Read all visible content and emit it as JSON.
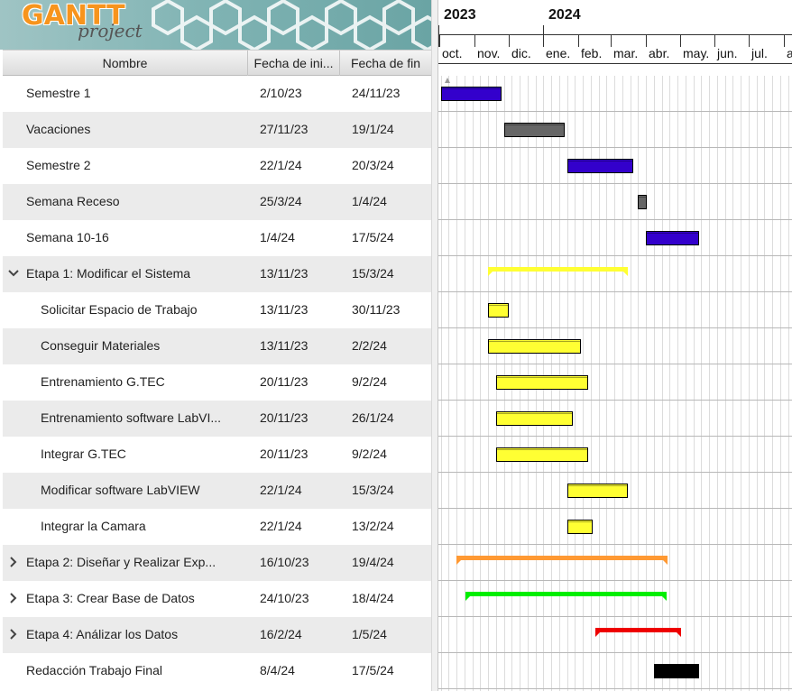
{
  "logo": {
    "main": "GANTT",
    "sub": "project"
  },
  "columns": {
    "name": "Nombre",
    "start": "Fecha de ini...",
    "end": "Fecha de fin"
  },
  "tasks": [
    {
      "name": "Semestre 1",
      "start": "2/10/23",
      "end": "24/11/23",
      "level": 0,
      "expander": "none",
      "color": "#3300cc",
      "type": "task"
    },
    {
      "name": "Vacaciones",
      "start": "27/11/23",
      "end": "19/1/24",
      "level": 0,
      "expander": "none",
      "color": "#666666",
      "type": "task"
    },
    {
      "name": "Semestre 2",
      "start": "22/1/24",
      "end": "20/3/24",
      "level": 0,
      "expander": "none",
      "color": "#3300cc",
      "type": "task"
    },
    {
      "name": "Semana Receso",
      "start": "25/3/24",
      "end": "1/4/24",
      "level": 0,
      "expander": "none",
      "color": "#666666",
      "type": "task"
    },
    {
      "name": "Semana 10-16",
      "start": "1/4/24",
      "end": "17/5/24",
      "level": 0,
      "expander": "none",
      "color": "#3300cc",
      "type": "task"
    },
    {
      "name": "Etapa 1: Modificar el Sistema",
      "start": "13/11/23",
      "end": "15/3/24",
      "level": 0,
      "expander": "open",
      "color": "#ffff33",
      "type": "summary"
    },
    {
      "name": "Solicitar Espacio de Trabajo",
      "start": "13/11/23",
      "end": "30/11/23",
      "level": 1,
      "expander": "none",
      "color": "#ffff33",
      "type": "task"
    },
    {
      "name": "Conseguir Materiales",
      "start": "13/11/23",
      "end": "2/2/24",
      "level": 1,
      "expander": "none",
      "color": "#ffff33",
      "type": "task"
    },
    {
      "name": "Entrenamiento G.TEC",
      "start": "20/11/23",
      "end": "9/2/24",
      "level": 1,
      "expander": "none",
      "color": "#ffff33",
      "type": "task"
    },
    {
      "name": "Entrenamiento software LabVI...",
      "start": "20/11/23",
      "end": "26/1/24",
      "level": 1,
      "expander": "none",
      "color": "#ffff33",
      "type": "task"
    },
    {
      "name": "Integrar G.TEC",
      "start": "20/11/23",
      "end": "9/2/24",
      "level": 1,
      "expander": "none",
      "color": "#ffff33",
      "type": "task"
    },
    {
      "name": "Modificar software LabVIEW",
      "start": "22/1/24",
      "end": "15/3/24",
      "level": 1,
      "expander": "none",
      "color": "#ffff33",
      "type": "task"
    },
    {
      "name": "Integrar la Camara",
      "start": "22/1/24",
      "end": "13/2/24",
      "level": 1,
      "expander": "none",
      "color": "#ffff33",
      "type": "task"
    },
    {
      "name": "Etapa 2: Diseñar y Realizar Exp...",
      "start": "16/10/23",
      "end": "19/4/24",
      "level": 0,
      "expander": "closed",
      "color": "#ff9933",
      "type": "summary"
    },
    {
      "name": "Etapa 3: Crear Base de Datos",
      "start": "24/10/23",
      "end": "18/4/24",
      "level": 0,
      "expander": "closed",
      "color": "#00ee00",
      "type": "summary"
    },
    {
      "name": "Etapa 4: Análizar los Datos",
      "start": "16/2/24",
      "end": "1/5/24",
      "level": 0,
      "expander": "closed",
      "color": "#ee0000",
      "type": "summary"
    },
    {
      "name": "Redacción Trabajo Final",
      "start": "8/4/24",
      "end": "17/5/24",
      "level": 0,
      "expander": "none",
      "color": "#000000",
      "type": "task"
    }
  ],
  "timeline": {
    "years": [
      "2023",
      "2024"
    ],
    "months": [
      "oct.",
      "nov.",
      "dic.",
      "ene.",
      "feb.",
      "mar.",
      "abr.",
      "may.",
      "jun.",
      "jul.",
      "a"
    ],
    "range_start": "2023-09-30",
    "range_end": "2024-08-15"
  }
}
